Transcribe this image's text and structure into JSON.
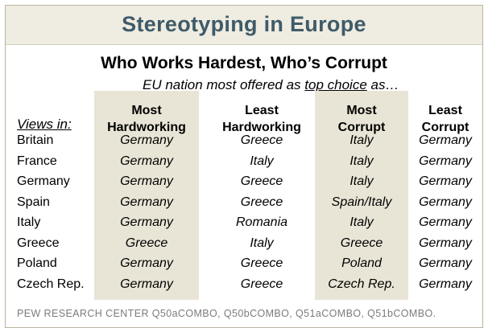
{
  "chart_data": {
    "type": "table",
    "title": "Stereotyping in Europe",
    "subtitle": "Who Works Hardest, Who’s Corrupt",
    "note": {
      "before": "EU nation most offered as ",
      "underlined": "top choice",
      "after": " as…"
    },
    "row_header_label": "Views in:",
    "columns": [
      {
        "line1": "Most",
        "line2": "Hardworking",
        "shaded": true
      },
      {
        "line1": "Least",
        "line2": "Hardworking",
        "shaded": false
      },
      {
        "line1": "Most",
        "line2": "Corrupt",
        "shaded": true
      },
      {
        "line1": "Least",
        "line2": "Corrupt",
        "shaded": false
      }
    ],
    "rows": [
      {
        "label": "Britain",
        "values": [
          "Germany",
          "Greece",
          "Italy",
          "Germany"
        ]
      },
      {
        "label": "France",
        "values": [
          "Germany",
          "Italy",
          "Italy",
          "Germany"
        ]
      },
      {
        "label": "Germany",
        "values": [
          "Germany",
          "Greece",
          "Italy",
          "Germany"
        ]
      },
      {
        "label": "Spain",
        "values": [
          "Germany",
          "Greece",
          "Spain/Italy",
          "Germany"
        ]
      },
      {
        "label": "Italy",
        "values": [
          "Germany",
          "Romania",
          "Italy",
          "Germany"
        ]
      },
      {
        "label": "Greece",
        "values": [
          "Greece",
          "Italy",
          "Greece",
          "Germany"
        ]
      },
      {
        "label": "Poland",
        "values": [
          "Germany",
          "Greece",
          "Poland",
          "Germany"
        ]
      },
      {
        "label": "Czech Rep.",
        "values": [
          "Germany",
          "Greece",
          "Czech Rep.",
          "Germany"
        ]
      }
    ],
    "source": "PEW RESEARCH CENTER Q50aCOMBO, Q50bCOMBO, Q51aCOMBO, Q51bCOMBO."
  },
  "colors": {
    "title_text": "#3f5b68",
    "title_band": "#efece2",
    "shaded_column": "#e9e5d6",
    "frame_border": "#b9b39c",
    "source_text": "#7b7b7b"
  }
}
